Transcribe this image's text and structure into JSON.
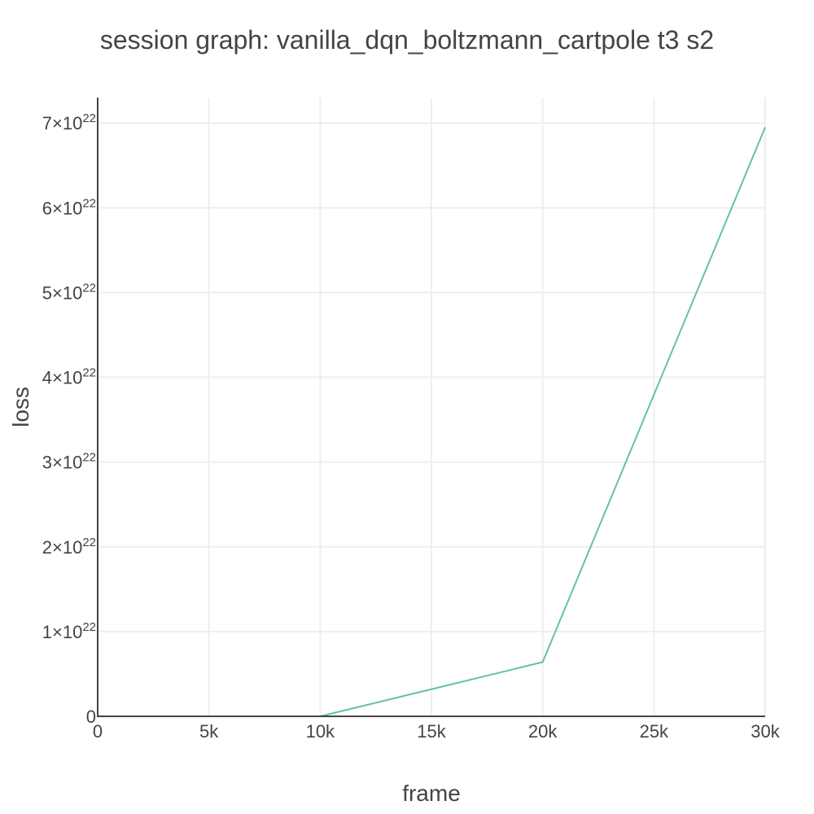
{
  "chart_data": {
    "type": "line",
    "title": "session graph: vanilla_dqn_boltzmann_cartpole t3 s2",
    "xlabel": "frame",
    "ylabel": "loss",
    "xlim": [
      0,
      30000
    ],
    "ylim": [
      0,
      7.3e+22
    ],
    "grid": true,
    "x_ticks": [
      {
        "value": 0,
        "label": "0"
      },
      {
        "value": 5000,
        "label": "5k"
      },
      {
        "value": 10000,
        "label": "10k"
      },
      {
        "value": 15000,
        "label": "15k"
      },
      {
        "value": 20000,
        "label": "20k"
      },
      {
        "value": 25000,
        "label": "25k"
      },
      {
        "value": 30000,
        "label": "30k"
      }
    ],
    "y_ticks": [
      {
        "value": 0,
        "mantissa": "0",
        "exponent": ""
      },
      {
        "value": 1e+22,
        "mantissa": "1×10",
        "exponent": "22"
      },
      {
        "value": 2e+22,
        "mantissa": "2×10",
        "exponent": "22"
      },
      {
        "value": 3e+22,
        "mantissa": "3×10",
        "exponent": "22"
      },
      {
        "value": 4e+22,
        "mantissa": "4×10",
        "exponent": "22"
      },
      {
        "value": 5e+22,
        "mantissa": "5×10",
        "exponent": "22"
      },
      {
        "value": 6e+22,
        "mantissa": "6×10",
        "exponent": "22"
      },
      {
        "value": 7e+22,
        "mantissa": "7×10",
        "exponent": "22"
      }
    ],
    "series": [
      {
        "color": "#66c2a5",
        "x": [
          10000,
          20000,
          30000
        ],
        "y": [
          0,
          6.4e+21,
          6.95e+22
        ]
      }
    ]
  }
}
